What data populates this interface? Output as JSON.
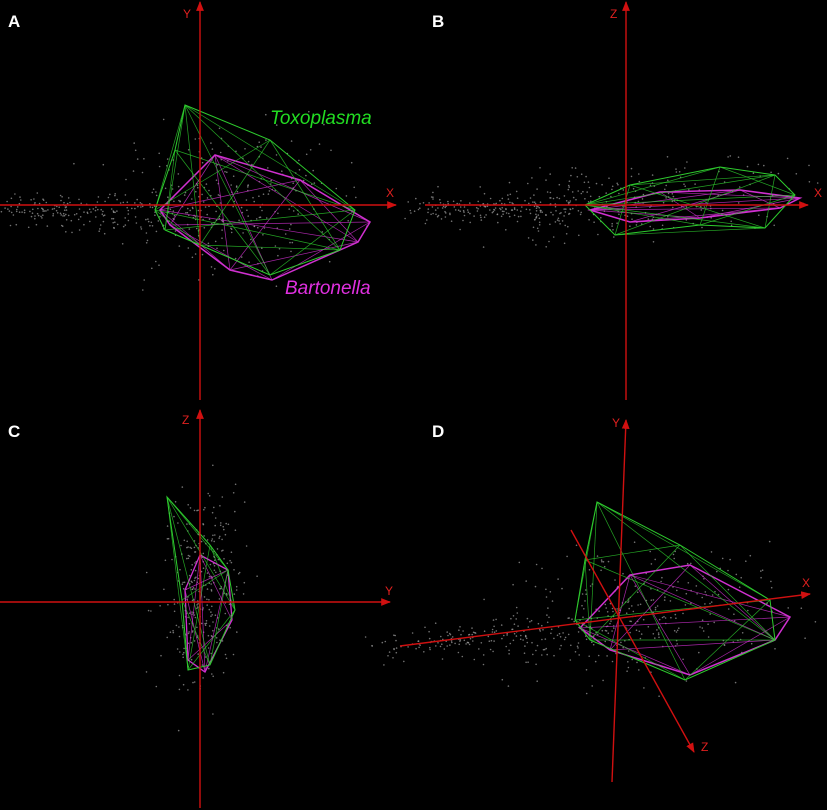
{
  "panels": [
    {
      "label": "A",
      "axes": [
        "X",
        "Y"
      ]
    },
    {
      "label": "B",
      "axes": [
        "X",
        "Z"
      ]
    },
    {
      "label": "C",
      "axes": [
        "Y",
        "Z"
      ]
    },
    {
      "label": "D",
      "axes": [
        "X",
        "Y",
        "Z"
      ]
    }
  ],
  "annotations": {
    "green_species": "Toxoplasma",
    "magenta_species": "Bartonella"
  }
}
